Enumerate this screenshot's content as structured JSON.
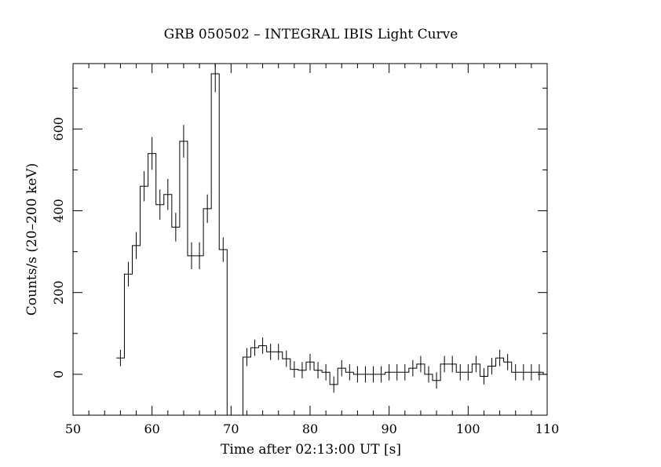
{
  "chart_data": {
    "type": "line",
    "style": "histogram-step-with-error-bars",
    "title": "GRB 050502 – INTEGRAL IBIS Light Curve",
    "xlabel": "Time after 02:13:00 UT [s]",
    "ylabel": "Counts/s (20–200 keV)",
    "xlim": [
      50,
      110
    ],
    "ylim": [
      -100,
      760
    ],
    "xticks": [
      50,
      60,
      70,
      80,
      90,
      100,
      110
    ],
    "yticks": [
      0,
      200,
      400,
      600
    ],
    "bin_width": 1,
    "grid": false,
    "legend": "none",
    "colors": {
      "line": "#000000",
      "background": "#ffffff"
    },
    "series": [
      {
        "x": [
          56,
          57,
          58,
          59,
          60,
          61,
          62,
          63,
          64,
          65,
          66,
          67,
          68,
          69,
          70,
          71,
          72,
          73,
          74,
          75,
          76,
          77,
          78,
          79,
          80,
          81,
          82,
          83,
          84,
          85,
          86,
          87,
          88,
          89,
          90,
          91,
          92,
          93,
          94,
          95,
          96,
          97,
          98,
          99,
          100,
          101,
          102,
          103,
          104,
          105,
          106,
          107,
          108,
          109,
          110
        ],
        "values": [
          40,
          245,
          315,
          460,
          540,
          415,
          440,
          360,
          570,
          290,
          290,
          405,
          735,
          305,
          -115,
          -115,
          42,
          65,
          70,
          55,
          55,
          38,
          12,
          10,
          30,
          10,
          5,
          -25,
          15,
          5,
          0,
          0,
          0,
          0,
          5,
          5,
          5,
          15,
          25,
          0,
          -15,
          25,
          25,
          5,
          5,
          25,
          -5,
          20,
          40,
          30,
          5,
          5,
          5,
          5,
          0
        ],
        "errors": [
          20,
          30,
          33,
          37,
          40,
          37,
          38,
          35,
          40,
          33,
          33,
          35,
          45,
          30,
          0,
          0,
          22,
          20,
          20,
          20,
          20,
          20,
          20,
          20,
          20,
          20,
          20,
          20,
          20,
          20,
          20,
          20,
          20,
          20,
          20,
          20,
          20,
          20,
          20,
          20,
          20,
          20,
          20,
          20,
          20,
          20,
          20,
          20,
          20,
          20,
          20,
          20,
          20,
          20,
          20
        ]
      }
    ]
  }
}
